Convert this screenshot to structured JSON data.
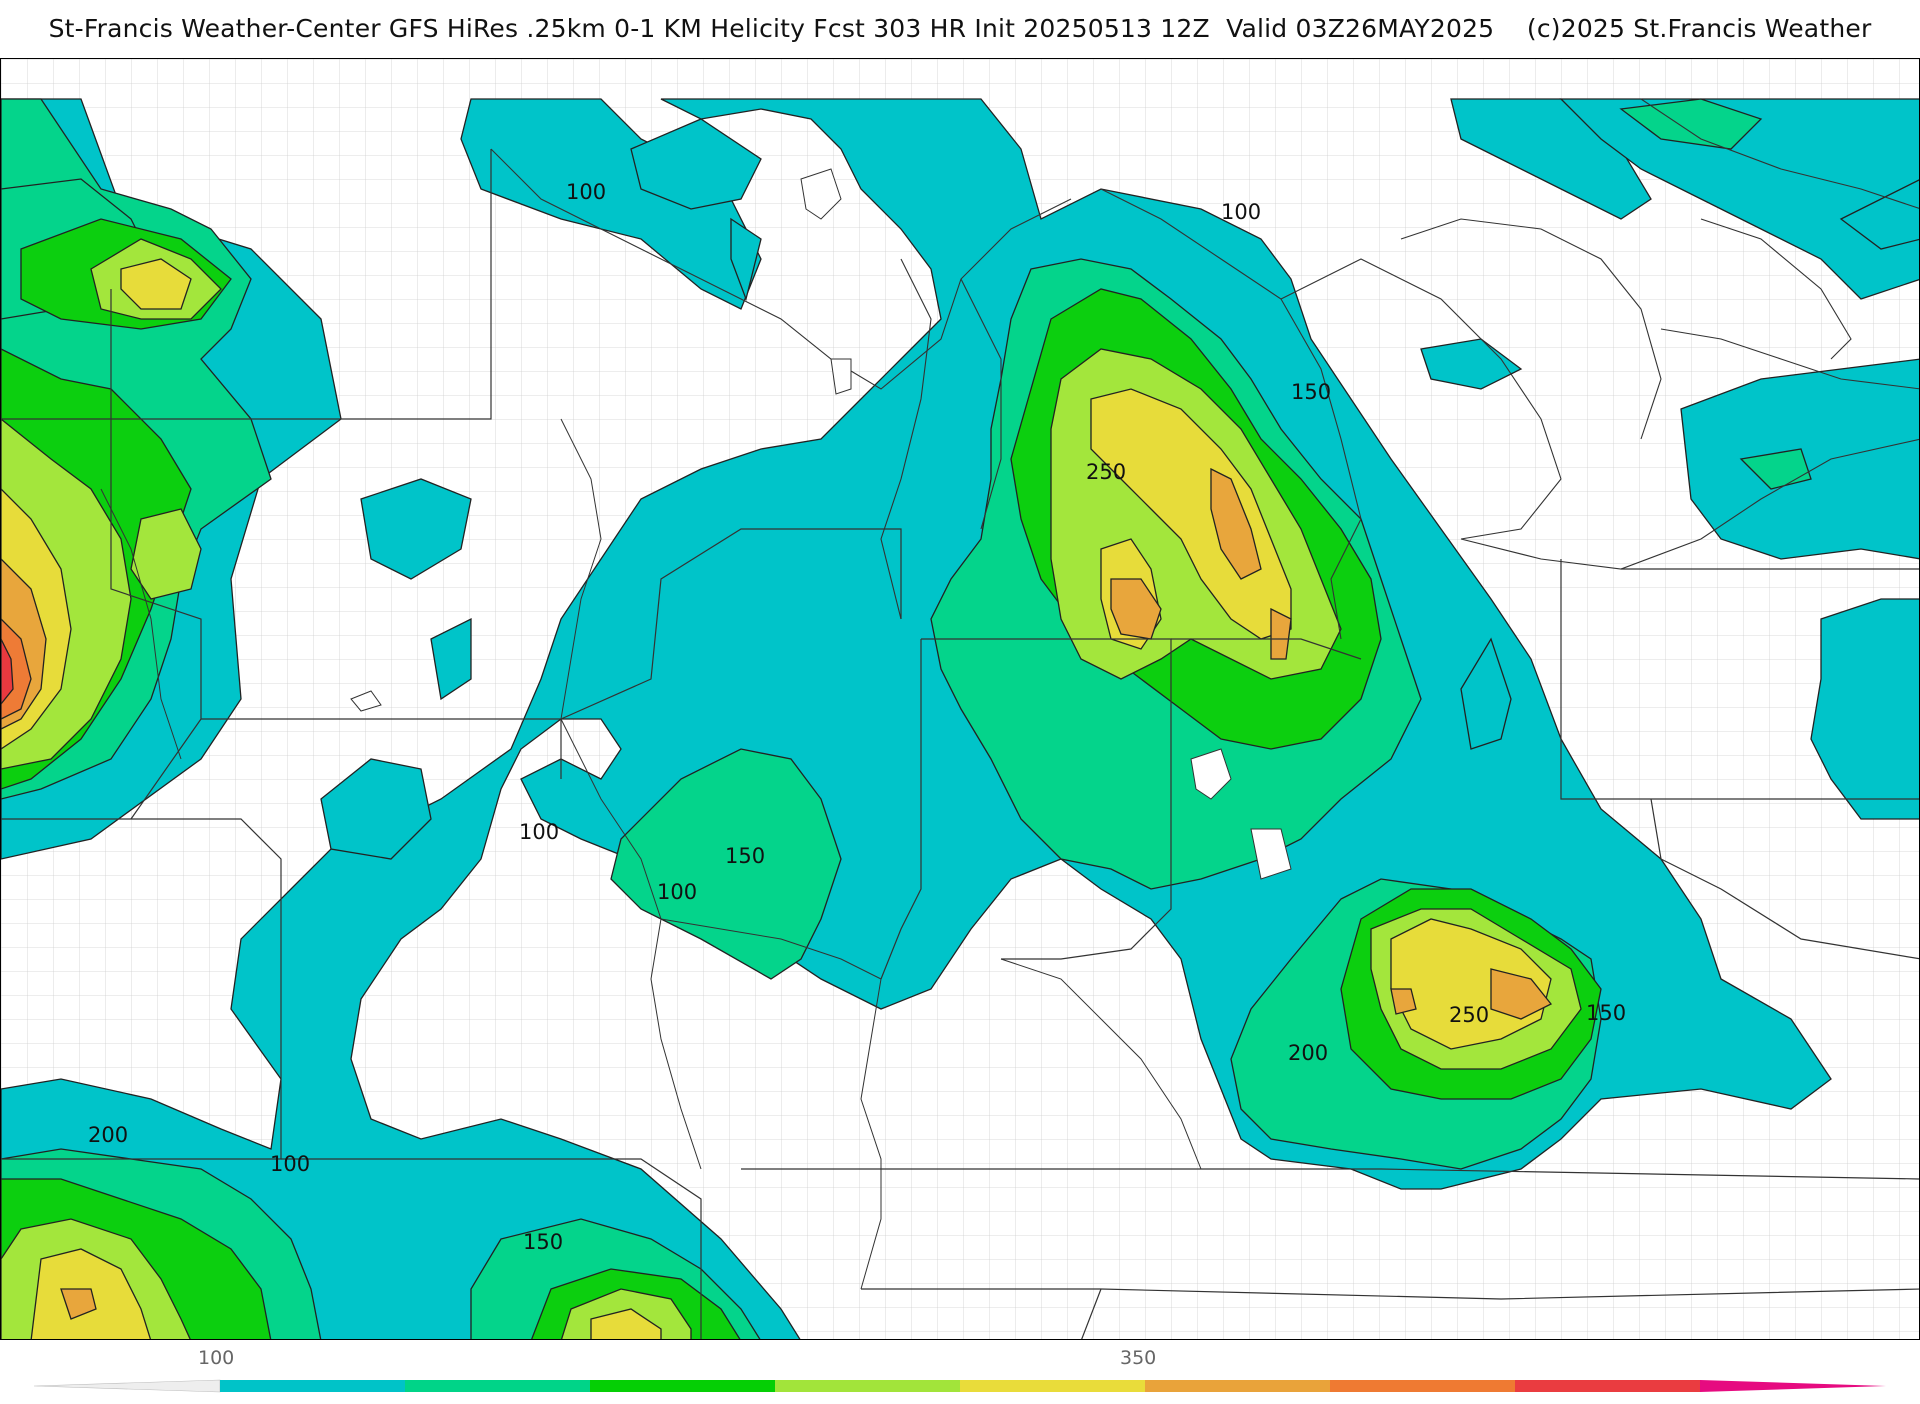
{
  "title": "St-Francis Weather-Center GFS HiRes .25km 0-1 KM Helicity Fcst 303 HR Init 20250513 12Z  Valid 03Z26MAY2025    (c)2025 St.Francis Weather",
  "map": {
    "field": "0-1 KM Helicity",
    "contour_labels": [
      "100",
      "100",
      "150",
      "250",
      "100",
      "150",
      "100",
      "150",
      "250",
      "200",
      "200",
      "100",
      "150"
    ]
  },
  "colorbar": {
    "tick_labels": [
      "100",
      "350"
    ],
    "colors": [
      "#00c3c8",
      "#00d488",
      "#05cf05",
      "#a2e43a",
      "#e9dc3a",
      "#e9a33a",
      "#ef7a32",
      "#ea3c40",
      "#e60b80"
    ]
  },
  "colors": {
    "c100": "#00c4c9",
    "c150": "#04d48b",
    "c200": "#0ccf0f",
    "c250": "#a3e63c",
    "c300": "#e7dc3a",
    "c350": "#e8a63c",
    "c400": "#ee7b36",
    "c450": "#e9393f"
  }
}
